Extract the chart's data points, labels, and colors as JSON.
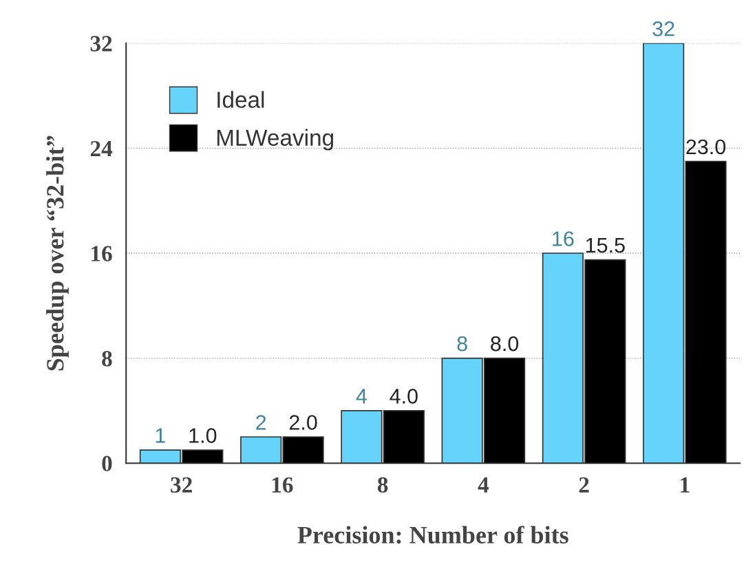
{
  "chart_data": {
    "type": "bar",
    "categories": [
      "32",
      "16",
      "8",
      "4",
      "2",
      "1"
    ],
    "xlabel": "Precision: Number of bits",
    "ylabel": "Speedup over “32-bit”",
    "series": [
      {
        "name": "Ideal",
        "color": "#66d3fa",
        "values": [
          1,
          2,
          4,
          8,
          16,
          32
        ],
        "value_labels": [
          "1",
          "2",
          "4",
          "8",
          "16",
          "32"
        ]
      },
      {
        "name": "MLWeaving",
        "color": "#000000",
        "values": [
          1,
          2,
          4,
          8,
          15.5,
          23.0
        ],
        "value_labels": [
          "1.0",
          "2.0",
          "4.0",
          "8.0",
          "15.5",
          "23.0"
        ]
      }
    ],
    "ylim": [
      0,
      32
    ],
    "yticks": [
      0,
      8,
      16,
      24,
      32
    ],
    "grid": "y",
    "legend": "top left"
  }
}
